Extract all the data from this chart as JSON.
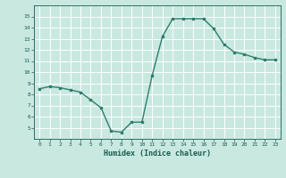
{
  "x": [
    0,
    1,
    2,
    3,
    4,
    5,
    6,
    7,
    8,
    9,
    10,
    11,
    12,
    13,
    14,
    15,
    16,
    17,
    18,
    19,
    20,
    21,
    22,
    23
  ],
  "y": [
    8.5,
    8.7,
    8.6,
    8.4,
    8.2,
    7.5,
    6.8,
    4.7,
    4.6,
    5.5,
    5.5,
    9.7,
    13.2,
    14.8,
    14.8,
    14.8,
    14.8,
    13.9,
    12.5,
    11.8,
    11.6,
    11.3,
    11.1,
    11.1
  ],
  "xlabel": "Humidex (Indice chaleur)",
  "ylim": [
    4,
    16
  ],
  "xlim": [
    -0.5,
    23.5
  ],
  "yticks": [
    5,
    6,
    7,
    8,
    9,
    10,
    11,
    12,
    13,
    14,
    15
  ],
  "xticks": [
    0,
    1,
    2,
    3,
    4,
    5,
    6,
    7,
    8,
    9,
    10,
    11,
    12,
    13,
    14,
    15,
    16,
    17,
    18,
    19,
    20,
    21,
    22,
    23
  ],
  "line_color": "#2e7d6e",
  "marker_color": "#2e7d6e",
  "bg_color": "#c8e8e0",
  "grid_color": "#ffffff",
  "tick_color": "#1a5c52",
  "label_color": "#1a5c52"
}
